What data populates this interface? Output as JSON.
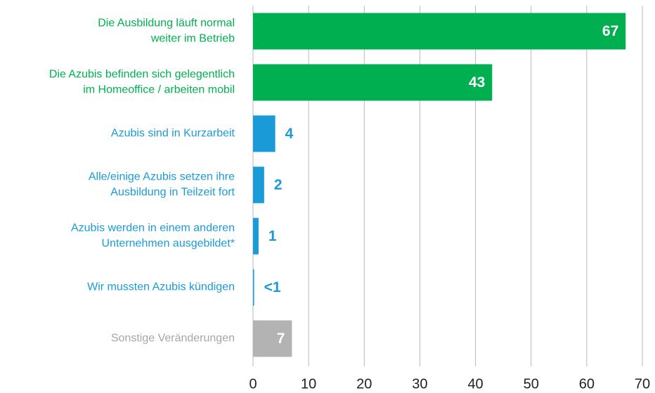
{
  "chart_data": {
    "type": "bar",
    "orientation": "horizontal",
    "categories": [
      [
        "Die Ausbildung läuft normal",
        "weiter im Betrieb"
      ],
      [
        "Die Azubis befinden sich gelegentlich",
        "im Homeoffice / arbeiten mobil"
      ],
      [
        "Azubis sind in Kurzarbeit"
      ],
      [
        "Alle/einige Azubis setzen ihre",
        "Ausbildung in Teilzeit fort"
      ],
      [
        "Azubis werden in einem anderen",
        "Unternehmen ausgebildet*"
      ],
      [
        "Wir mussten Azubis kündigen"
      ],
      [
        "Sonstige Veränderungen"
      ]
    ],
    "values": [
      67,
      43,
      4,
      2,
      1,
      0.2,
      7
    ],
    "value_labels": [
      "67",
      "43",
      "4",
      "2",
      "1",
      "<1",
      "7"
    ],
    "colors": [
      "#00b050",
      "#00b050",
      "#1a9bd7",
      "#1a9bd7",
      "#1a9bd7",
      "#1a9bd7",
      "#b3b3b3"
    ],
    "xlim": [
      0,
      70
    ],
    "xticks": [
      0,
      10,
      20,
      30,
      40,
      50,
      60,
      70
    ],
    "grid": true
  }
}
